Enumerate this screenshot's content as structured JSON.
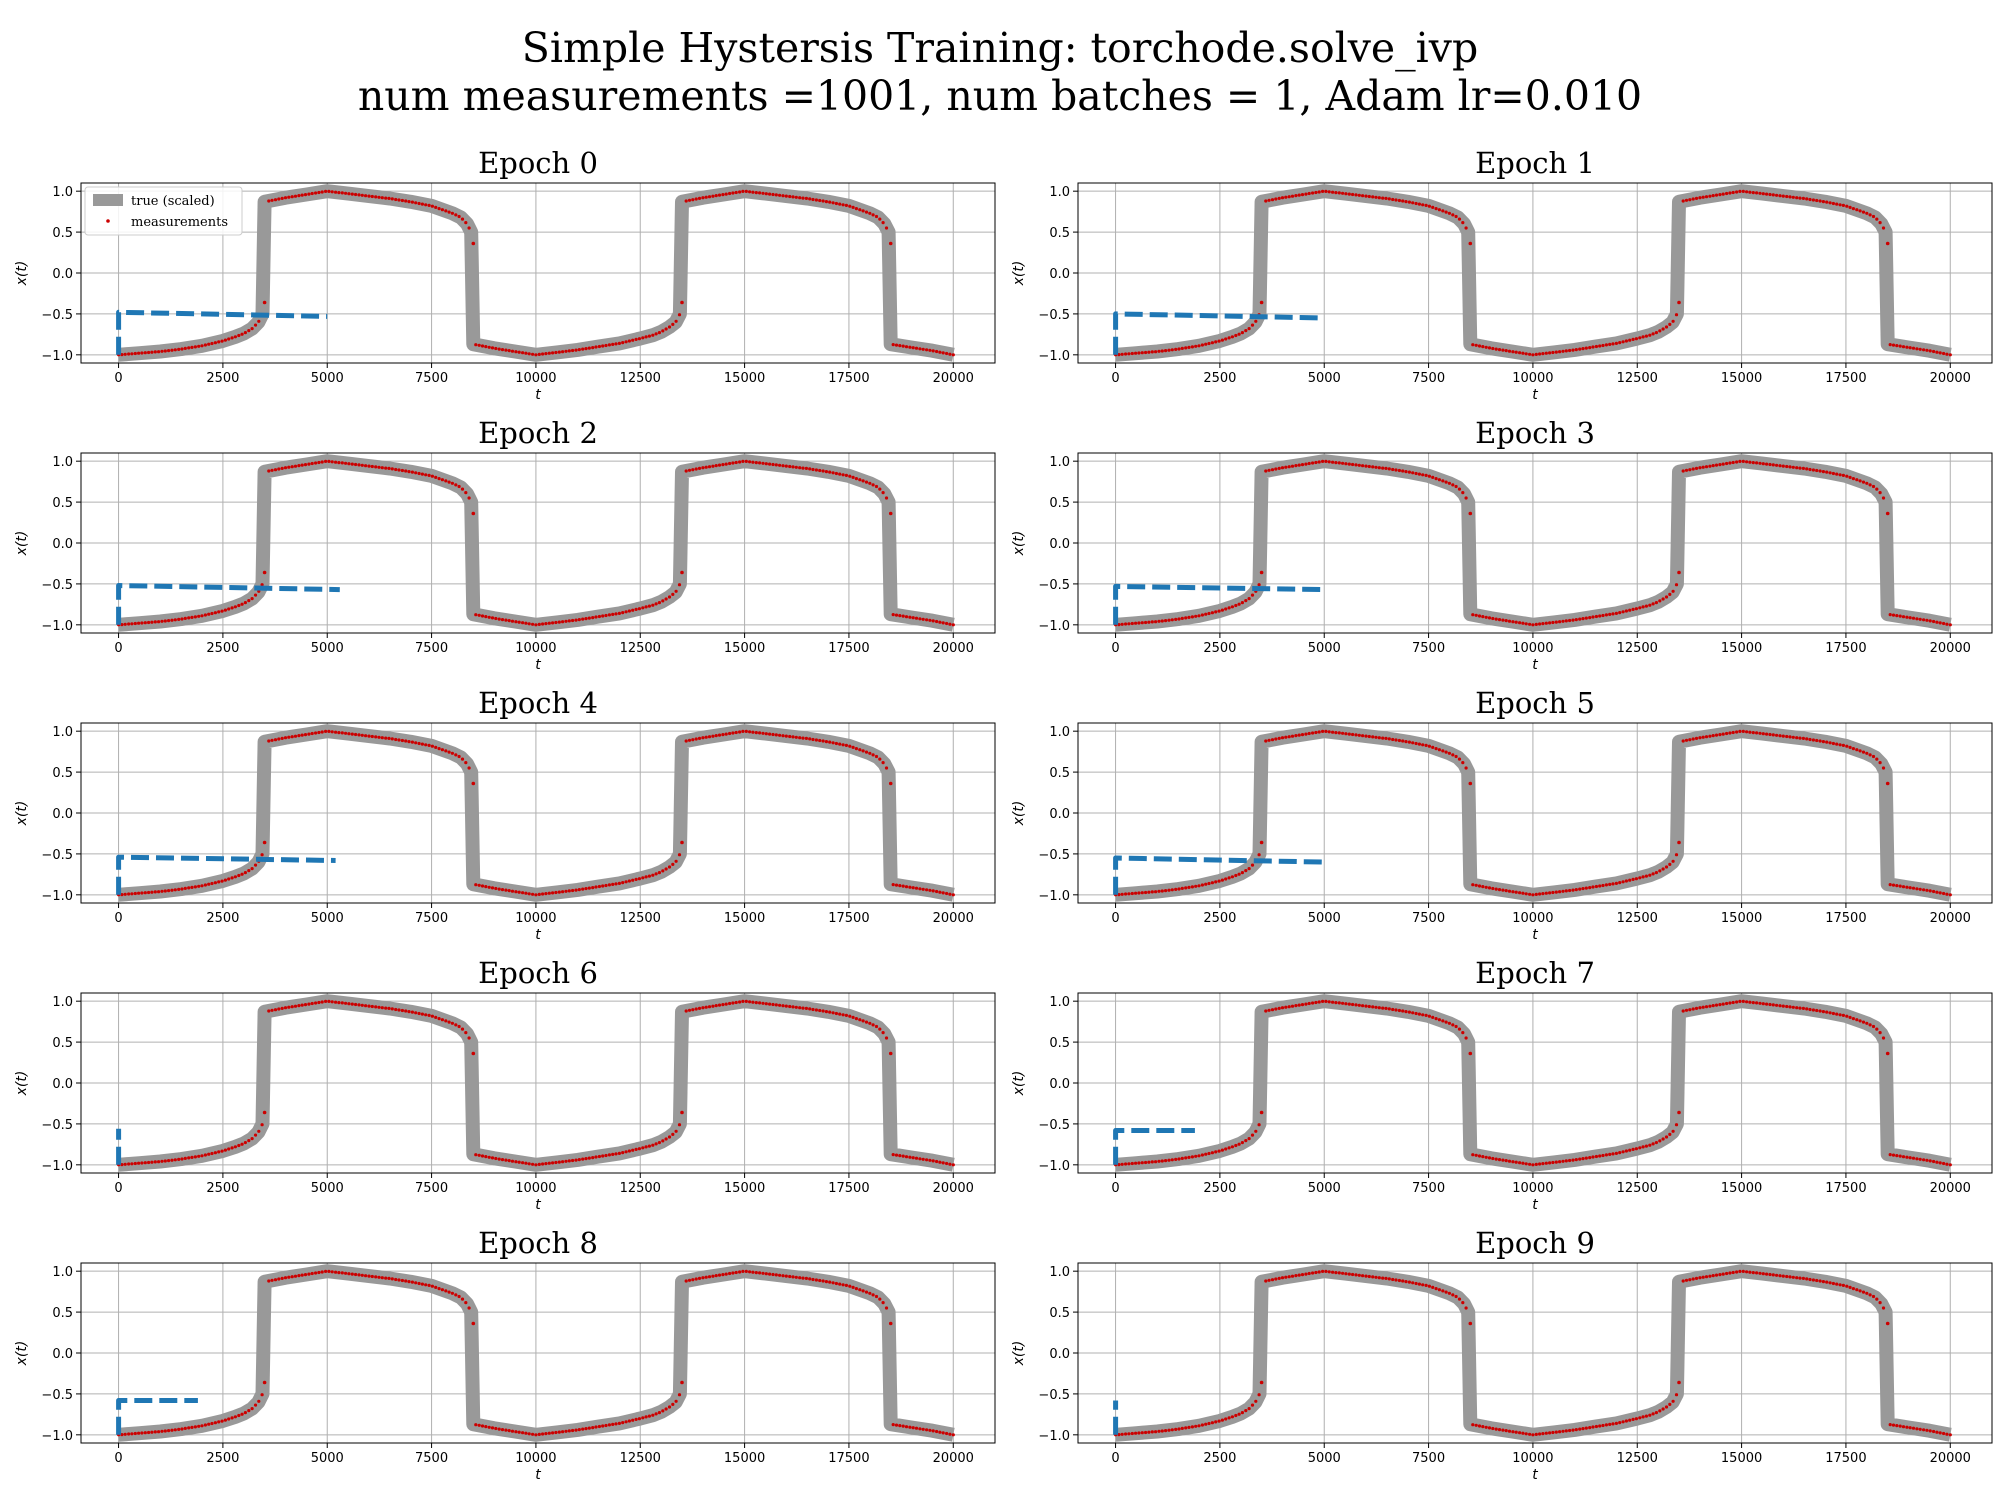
{
  "figure": {
    "title_line1": "Simple Hystersis Training: torchode.solve_ivp",
    "title_line2": "num measurements =1001, num batches = 1, Adam lr=0.010"
  },
  "colors": {
    "true_curve": "#999999",
    "measurements": "#cc0000",
    "prediction": "#1f77b4",
    "grid": "#b0b0b0",
    "axes": "#000000"
  },
  "legend": {
    "true_label": "true (scaled)",
    "measurements_label": "measurements"
  },
  "chart_data": {
    "type": "line",
    "layout": "5x2 grid",
    "xlabel": "t",
    "ylabel": "x(t)",
    "xlim": [
      -900,
      21000
    ],
    "ylim": [
      -1.1,
      1.1
    ],
    "xticks": [
      0,
      2500,
      5000,
      7500,
      10000,
      12500,
      15000,
      17500,
      20000
    ],
    "yticks": [
      1.0,
      0.5,
      0.0,
      -0.5,
      -1.0
    ],
    "grid": true,
    "legend_position": "upper-left (Epoch 0 only)",
    "true_curve": [
      [
        0,
        -1.0
      ],
      [
        500,
        -0.98
      ],
      [
        1000,
        -0.96
      ],
      [
        1500,
        -0.93
      ],
      [
        2000,
        -0.89
      ],
      [
        2500,
        -0.83
      ],
      [
        2800,
        -0.78
      ],
      [
        3000,
        -0.74
      ],
      [
        3200,
        -0.68
      ],
      [
        3350,
        -0.6
      ],
      [
        3450,
        -0.5
      ],
      [
        3500,
        0.87
      ],
      [
        4000,
        0.92
      ],
      [
        4500,
        0.96
      ],
      [
        5000,
        1.0
      ],
      [
        5500,
        0.97
      ],
      [
        6000,
        0.94
      ],
      [
        6500,
        0.91
      ],
      [
        7000,
        0.87
      ],
      [
        7500,
        0.82
      ],
      [
        8000,
        0.73
      ],
      [
        8200,
        0.68
      ],
      [
        8350,
        0.6
      ],
      [
        8450,
        0.5
      ],
      [
        8500,
        -0.87
      ],
      [
        9000,
        -0.92
      ],
      [
        9500,
        -0.96
      ],
      [
        10000,
        -1.0
      ],
      [
        10500,
        -0.97
      ],
      [
        11000,
        -0.94
      ],
      [
        11500,
        -0.9
      ],
      [
        12000,
        -0.86
      ],
      [
        12500,
        -0.8
      ],
      [
        12800,
        -0.76
      ],
      [
        13000,
        -0.72
      ],
      [
        13200,
        -0.66
      ],
      [
        13350,
        -0.6
      ],
      [
        13450,
        -0.5
      ],
      [
        13500,
        0.87
      ],
      [
        14000,
        0.92
      ],
      [
        14500,
        0.96
      ],
      [
        15000,
        1.0
      ],
      [
        15500,
        0.97
      ],
      [
        16000,
        0.94
      ],
      [
        16500,
        0.91
      ],
      [
        17000,
        0.87
      ],
      [
        17500,
        0.82
      ],
      [
        18000,
        0.73
      ],
      [
        18200,
        0.68
      ],
      [
        18350,
        0.6
      ],
      [
        18450,
        0.5
      ],
      [
        18500,
        -0.87
      ],
      [
        19000,
        -0.91
      ],
      [
        19500,
        -0.95
      ],
      [
        20000,
        -1.0
      ]
    ],
    "measurement_outliers": [
      [
        3500,
        -0.36
      ],
      [
        8500,
        0.36
      ],
      [
        13500,
        -0.36
      ],
      [
        18500,
        0.36
      ]
    ],
    "panels": [
      {
        "title": "Epoch 0",
        "prediction": [
          [
            0,
            -1.0
          ],
          [
            0,
            -0.48
          ],
          [
            5000,
            -0.53
          ]
        ]
      },
      {
        "title": "Epoch 1",
        "prediction": [
          [
            0,
            -1.0
          ],
          [
            0,
            -0.5
          ],
          [
            5000,
            -0.55
          ]
        ]
      },
      {
        "title": "Epoch 2",
        "prediction": [
          [
            0,
            -1.0
          ],
          [
            0,
            -0.52
          ],
          [
            5300,
            -0.57
          ]
        ]
      },
      {
        "title": "Epoch 3",
        "prediction": [
          [
            0,
            -1.0
          ],
          [
            0,
            -0.53
          ],
          [
            5000,
            -0.57
          ]
        ]
      },
      {
        "title": "Epoch 4",
        "prediction": [
          [
            0,
            -1.0
          ],
          [
            0,
            -0.54
          ],
          [
            5200,
            -0.58
          ]
        ]
      },
      {
        "title": "Epoch 5",
        "prediction": [
          [
            0,
            -1.0
          ],
          [
            0,
            -0.55
          ],
          [
            5000,
            -0.6
          ]
        ]
      },
      {
        "title": "Epoch 6",
        "prediction": [
          [
            0,
            -1.0
          ],
          [
            0,
            -0.56
          ]
        ]
      },
      {
        "title": "Epoch 7",
        "prediction": [
          [
            0,
            -1.0
          ],
          [
            0,
            -0.58
          ],
          [
            1900,
            -0.58
          ]
        ]
      },
      {
        "title": "Epoch 8",
        "prediction": [
          [
            0,
            -1.0
          ],
          [
            0,
            -0.58
          ],
          [
            1900,
            -0.58
          ]
        ]
      },
      {
        "title": "Epoch 9",
        "prediction": [
          [
            0,
            -1.0
          ],
          [
            0,
            -0.58
          ]
        ]
      }
    ]
  }
}
